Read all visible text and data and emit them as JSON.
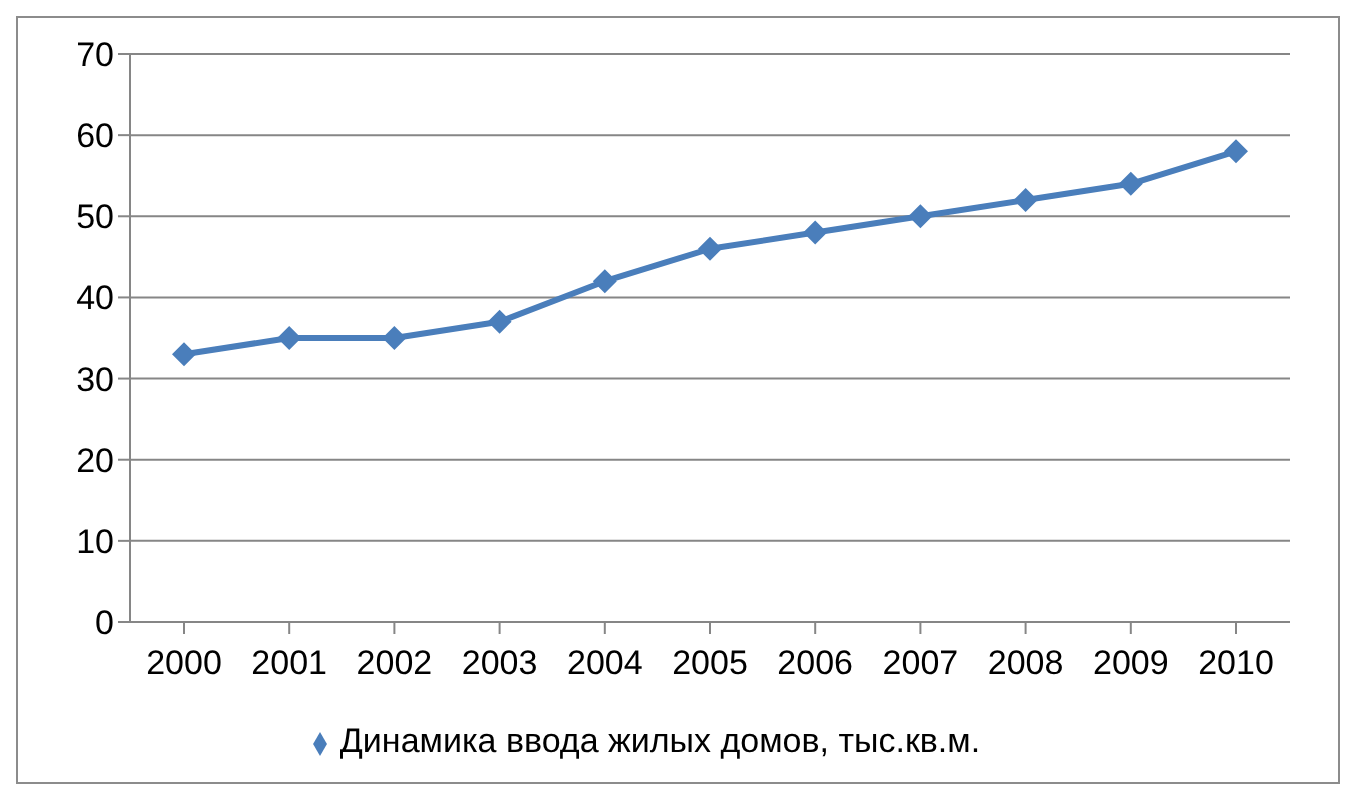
{
  "chart_data": {
    "type": "line",
    "categories": [
      "2000",
      "2001",
      "2002",
      "2003",
      "2004",
      "2005",
      "2006",
      "2007",
      "2008",
      "2009",
      "2010"
    ],
    "series": [
      {
        "name": "Динамика ввода жилых домов, тыс.кв.м.",
        "color": "#4a7ebb",
        "values": [
          33,
          35,
          35,
          37,
          42,
          46,
          48,
          50,
          52,
          54,
          58
        ]
      }
    ],
    "ylim": [
      0,
      70
    ],
    "yticks": [
      0,
      10,
      20,
      30,
      40,
      50,
      60,
      70
    ],
    "grid": "y",
    "legend": "bottom",
    "marker": "diamond",
    "line_style": "solid"
  }
}
